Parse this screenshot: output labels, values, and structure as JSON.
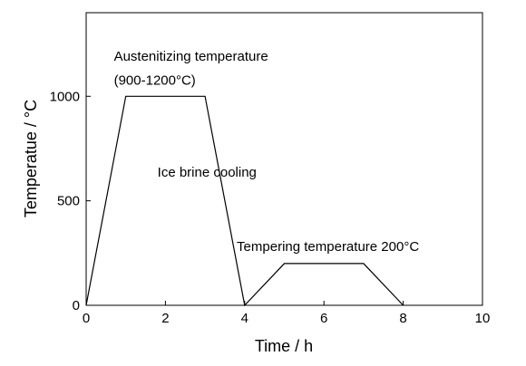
{
  "chart_data": {
    "type": "line",
    "xlabel": "Time / h",
    "ylabel": "Temperatue / °C",
    "xlim": [
      0,
      10
    ],
    "ylim": [
      0,
      1400
    ],
    "xticks": [
      0,
      2,
      4,
      6,
      8,
      10
    ],
    "yticks": [
      0,
      500,
      1000
    ],
    "grid": false,
    "series": [
      {
        "x": [
          0,
          1,
          3,
          4,
          5,
          7,
          8
        ],
        "y": [
          0,
          1000,
          1000,
          0,
          200,
          200,
          0
        ]
      }
    ],
    "annotations": [
      {
        "text": "Austenitizing temperature",
        "x": 0.7,
        "y": 1170
      },
      {
        "text": "(900-1200°C)",
        "x": 0.7,
        "y": 1055
      },
      {
        "text": "Ice brine cooling",
        "x": 1.8,
        "y": 615
      },
      {
        "text": "Tempering temperature 200°C",
        "x": 3.8,
        "y": 260
      }
    ]
  }
}
